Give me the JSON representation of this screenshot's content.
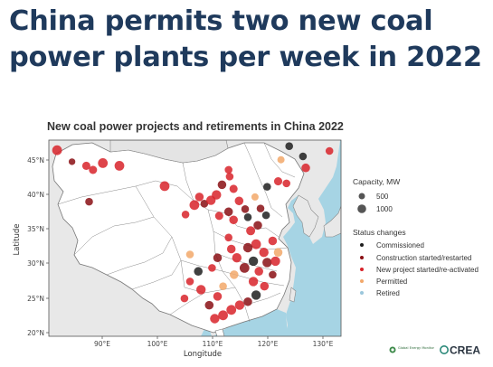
{
  "headline": {
    "line1": "China permits two new coal",
    "line2": "power plants per week in 2022"
  },
  "chart_title": "New coal power projects and retirements in China 2022",
  "axes": {
    "xlabel": "Longitude",
    "ylabel": "Latitude",
    "x_ticks": [
      "90°E",
      "100°E",
      "110°E",
      "120°E",
      "130°E"
    ],
    "y_ticks": [
      "20°N",
      "25°N",
      "30°N",
      "35°N",
      "40°N",
      "45°N"
    ]
  },
  "legend": {
    "capacity_title": "Capacity, MW",
    "capacity_items": [
      "500",
      "1000"
    ],
    "status_title": "Status changes",
    "status_items": [
      {
        "label": "Commissioned",
        "color": "#1e1e1e"
      },
      {
        "label": "Construction started/restarted",
        "color": "#8a0f14"
      },
      {
        "label": "New project started/re-activated",
        "color": "#d8232a"
      },
      {
        "label": "Permitted",
        "color": "#f2a86a"
      },
      {
        "label": "Retired",
        "color": "#9bc7dc"
      }
    ]
  },
  "logos": {
    "gem": "Global Energy Monitor",
    "crea": "CREA"
  },
  "colors": {
    "headline": "#1f3a5c",
    "sea": "#a6d4e4",
    "land": "#e8e8e8",
    "china": "#ffffff"
  },
  "chart_data": {
    "type": "scatter",
    "title": "New coal power projects and retirements in China 2022",
    "xlabel": "Longitude",
    "ylabel": "Latitude",
    "xlim": [
      80,
      133
    ],
    "ylim": [
      19,
      48
    ],
    "projection": "geographic",
    "size_legend_mw": [
      500,
      1000
    ],
    "points": [
      {
        "lon": 81.5,
        "lat": 46.5,
        "status": "new",
        "mw": 1000
      },
      {
        "lon": 84.2,
        "lat": 44.8,
        "status": "construction",
        "mw": 300
      },
      {
        "lon": 86.8,
        "lat": 44.2,
        "status": "new",
        "mw": 600
      },
      {
        "lon": 88.0,
        "lat": 43.6,
        "status": "new",
        "mw": 600
      },
      {
        "lon": 89.8,
        "lat": 44.6,
        "status": "new",
        "mw": 1000
      },
      {
        "lon": 92.8,
        "lat": 44.2,
        "status": "new",
        "mw": 1000
      },
      {
        "lon": 87.3,
        "lat": 38.9,
        "status": "construction",
        "mw": 500
      },
      {
        "lon": 101.0,
        "lat": 41.2,
        "status": "new",
        "mw": 1000
      },
      {
        "lon": 104.8,
        "lat": 37.0,
        "status": "new",
        "mw": 500
      },
      {
        "lon": 106.4,
        "lat": 38.4,
        "status": "new",
        "mw": 1000
      },
      {
        "lon": 107.3,
        "lat": 39.6,
        "status": "new",
        "mw": 700
      },
      {
        "lon": 108.2,
        "lat": 38.6,
        "status": "construction",
        "mw": 500
      },
      {
        "lon": 109.4,
        "lat": 39.1,
        "status": "new",
        "mw": 900
      },
      {
        "lon": 110.4,
        "lat": 39.9,
        "status": "new",
        "mw": 900
      },
      {
        "lon": 111.4,
        "lat": 41.4,
        "status": "construction",
        "mw": 700
      },
      {
        "lon": 112.8,
        "lat": 42.6,
        "status": "new",
        "mw": 500
      },
      {
        "lon": 112.6,
        "lat": 43.6,
        "status": "new",
        "mw": 500
      },
      {
        "lon": 113.5,
        "lat": 40.8,
        "status": "new",
        "mw": 600
      },
      {
        "lon": 114.5,
        "lat": 39.0,
        "status": "new",
        "mw": 700
      },
      {
        "lon": 113.5,
        "lat": 36.2,
        "status": "new",
        "mw": 700
      },
      {
        "lon": 112.6,
        "lat": 37.4,
        "status": "construction",
        "mw": 700
      },
      {
        "lon": 110.9,
        "lat": 36.8,
        "status": "new",
        "mw": 600
      },
      {
        "lon": 115.6,
        "lat": 37.8,
        "status": "construction",
        "mw": 500
      },
      {
        "lon": 116.1,
        "lat": 36.6,
        "status": "commissioned",
        "mw": 500
      },
      {
        "lon": 117.4,
        "lat": 39.6,
        "status": "permitted",
        "mw": 400
      },
      {
        "lon": 118.4,
        "lat": 37.9,
        "status": "construction",
        "mw": 500
      },
      {
        "lon": 119.4,
        "lat": 36.9,
        "status": "commissioned",
        "mw": 500
      },
      {
        "lon": 117.9,
        "lat": 35.4,
        "status": "construction",
        "mw": 700
      },
      {
        "lon": 116.6,
        "lat": 34.6,
        "status": "new",
        "mw": 800
      },
      {
        "lon": 117.6,
        "lat": 32.6,
        "status": "new",
        "mw": 1000
      },
      {
        "lon": 119.0,
        "lat": 31.4,
        "status": "new",
        "mw": 900
      },
      {
        "lon": 120.6,
        "lat": 33.1,
        "status": "new",
        "mw": 700
      },
      {
        "lon": 119.6,
        "lat": 29.9,
        "status": "construction",
        "mw": 900
      },
      {
        "lon": 118.1,
        "lat": 28.6,
        "status": "new",
        "mw": 700
      },
      {
        "lon": 117.1,
        "lat": 27.1,
        "status": "new",
        "mw": 900
      },
      {
        "lon": 115.5,
        "lat": 29.1,
        "status": "construction",
        "mw": 1000
      },
      {
        "lon": 114.1,
        "lat": 30.6,
        "status": "new",
        "mw": 900
      },
      {
        "lon": 113.1,
        "lat": 31.9,
        "status": "new",
        "mw": 700
      },
      {
        "lon": 112.6,
        "lat": 33.6,
        "status": "new",
        "mw": 500
      },
      {
        "lon": 110.6,
        "lat": 30.6,
        "status": "construction",
        "mw": 700
      },
      {
        "lon": 109.6,
        "lat": 29.1,
        "status": "new",
        "mw": 500
      },
      {
        "lon": 107.1,
        "lat": 28.6,
        "status": "commissioned",
        "mw": 700
      },
      {
        "lon": 105.6,
        "lat": 27.1,
        "status": "new",
        "mw": 500
      },
      {
        "lon": 104.6,
        "lat": 24.6,
        "status": "new",
        "mw": 500
      },
      {
        "lon": 107.6,
        "lat": 25.9,
        "status": "new",
        "mw": 900
      },
      {
        "lon": 110.6,
        "lat": 24.9,
        "status": "new",
        "mw": 700
      },
      {
        "lon": 109.1,
        "lat": 23.6,
        "status": "construction",
        "mw": 700
      },
      {
        "lon": 110.1,
        "lat": 21.6,
        "status": "new",
        "mw": 900
      },
      {
        "lon": 111.6,
        "lat": 22.1,
        "status": "new",
        "mw": 1000
      },
      {
        "lon": 113.1,
        "lat": 22.9,
        "status": "new",
        "mw": 1000
      },
      {
        "lon": 114.6,
        "lat": 23.6,
        "status": "new",
        "mw": 900
      },
      {
        "lon": 116.1,
        "lat": 24.1,
        "status": "construction",
        "mw": 700
      },
      {
        "lon": 117.6,
        "lat": 25.1,
        "status": "commissioned",
        "mw": 900
      },
      {
        "lon": 119.1,
        "lat": 26.4,
        "status": "new",
        "mw": 700
      },
      {
        "lon": 120.6,
        "lat": 28.1,
        "status": "construction",
        "mw": 500
      },
      {
        "lon": 121.1,
        "lat": 30.1,
        "status": "new",
        "mw": 900
      },
      {
        "lon": 121.6,
        "lat": 31.4,
        "status": "permitted",
        "mw": 700
      },
      {
        "lon": 119.6,
        "lat": 41.1,
        "status": "commissioned",
        "mw": 500
      },
      {
        "lon": 121.6,
        "lat": 41.9,
        "status": "new",
        "mw": 600
      },
      {
        "lon": 123.1,
        "lat": 41.6,
        "status": "new",
        "mw": 500
      },
      {
        "lon": 126.6,
        "lat": 43.9,
        "status": "new",
        "mw": 700
      },
      {
        "lon": 126.1,
        "lat": 45.6,
        "status": "commissioned",
        "mw": 500
      },
      {
        "lon": 123.6,
        "lat": 47.1,
        "status": "commissioned",
        "mw": 500
      },
      {
        "lon": 122.1,
        "lat": 45.1,
        "status": "permitted",
        "mw": 400
      },
      {
        "lon": 130.9,
        "lat": 46.4,
        "status": "new",
        "mw": 500
      },
      {
        "lon": 105.6,
        "lat": 31.1,
        "status": "permitted",
        "mw": 500
      },
      {
        "lon": 113.6,
        "lat": 28.1,
        "status": "permitted",
        "mw": 700
      },
      {
        "lon": 111.6,
        "lat": 26.4,
        "status": "permitted",
        "mw": 500
      },
      {
        "lon": 117.1,
        "lat": 30.1,
        "status": "commissioned",
        "mw": 900
      },
      {
        "lon": 116.1,
        "lat": 32.1,
        "status": "construction",
        "mw": 900
      }
    ]
  }
}
